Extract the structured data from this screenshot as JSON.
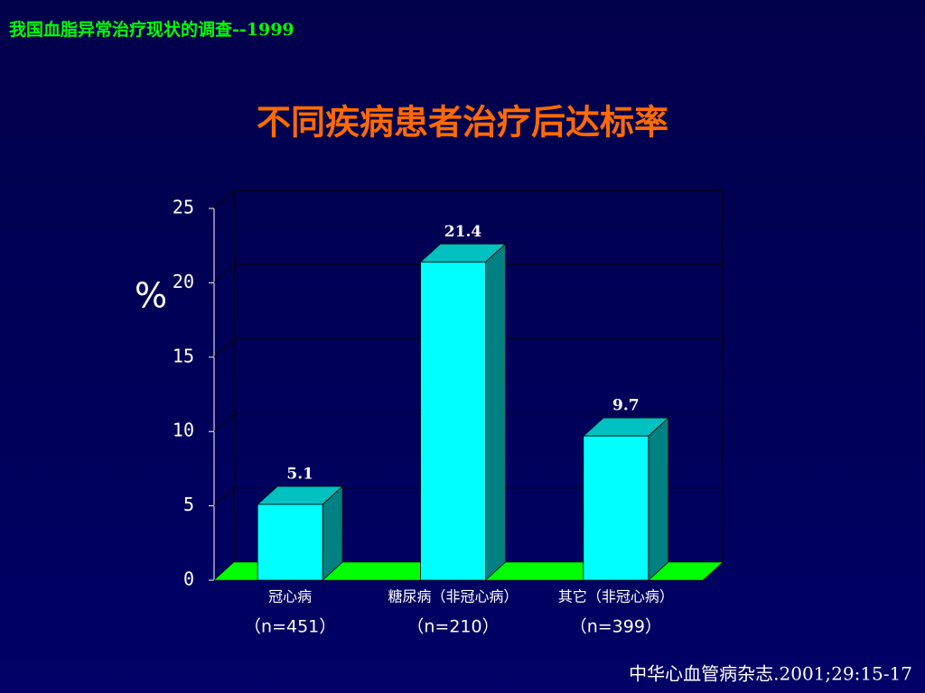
{
  "header": "我国血脂异常治疗现状的调查--1999",
  "chart_data": {
    "type": "bar3d",
    "title": "不同疾病患者治疗后达标率",
    "y_label": "%",
    "categories": [
      "冠心病",
      "糖尿病（非冠心病）",
      "其它（非冠心病）"
    ],
    "category_notes": [
      "（n=451）",
      "（n=210）",
      "（n=399）"
    ],
    "values": [
      5.1,
      21.4,
      9.7
    ],
    "color": "#00ffff",
    "floor_color": "#00ff00",
    "ylim": [
      0,
      25
    ],
    "yticks": [
      0,
      5,
      10,
      15,
      20,
      25
    ],
    "grid": true
  },
  "source": "中华心血管病杂志.2001;29:15-17"
}
